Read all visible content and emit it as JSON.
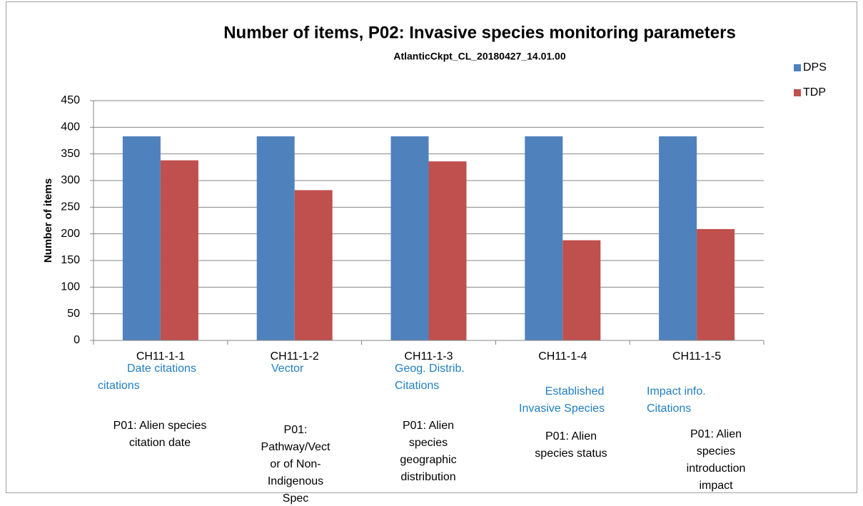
{
  "chart_data": {
    "type": "bar",
    "title": "Number of items, P02: Invasive species monitoring parameters",
    "subtitle": "AtlanticCkpt_CL_20180427_14.01.00",
    "y_label": "Number of items",
    "categories": [
      "CH11-1-1",
      "CH11-1-2",
      "CH11-1-3",
      "CH11-1-4",
      "CH11-1-5"
    ],
    "series": [
      {
        "name": "DPS",
        "color": "#4f81bd",
        "values": [
          383,
          383,
          383,
          383,
          383
        ]
      },
      {
        "name": "TDP",
        "color": "#c0504d",
        "values": [
          338,
          282,
          336,
          188,
          209
        ]
      }
    ],
    "ylim": [
      0,
      450
    ],
    "yticks": [
      0,
      50,
      100,
      150,
      200,
      250,
      300,
      350,
      400,
      450
    ],
    "grid": true,
    "legend": "top-right",
    "notes": [
      {
        "title": [
          "Date citations",
          "citations"
        ],
        "description": [
          "P01: Alien species",
          "citation date"
        ]
      },
      {
        "title": [
          "Vector"
        ],
        "description": [
          "P01:",
          "Pathway/Vect",
          "or of Non-",
          "Indigenous",
          "Spec"
        ]
      },
      {
        "title": [
          "Geog. Distrib.",
          "Citations"
        ],
        "description": [
          "P01: Alien",
          "species",
          "geographic",
          "distribution"
        ]
      },
      {
        "title": [
          "Established",
          "Invasive Species"
        ],
        "description": [
          "P01: Alien",
          "species status"
        ]
      },
      {
        "title": [
          "Impact info.",
          "Citations"
        ],
        "description": [
          "P01: Alien",
          "species",
          "introduction",
          "impact"
        ]
      }
    ]
  }
}
